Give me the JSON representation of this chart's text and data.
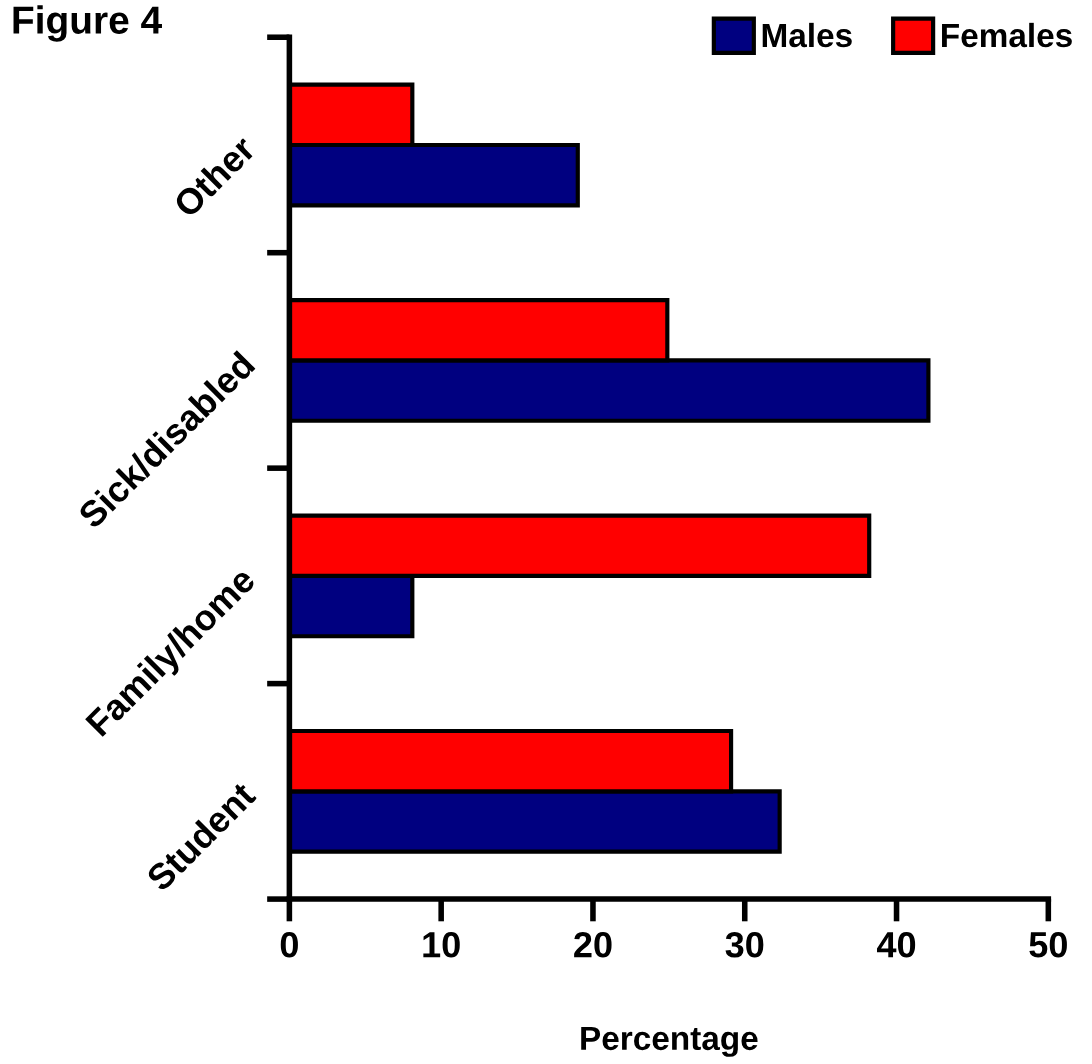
{
  "chart_data": {
    "type": "bar",
    "orientation": "horizontal",
    "title": "Figure 4",
    "xlabel": "Percentage",
    "categories": [
      "Other",
      "Sick/disabled",
      "Family/home",
      "Student"
    ],
    "series": [
      {
        "name": "Males",
        "color": "#000080",
        "values": [
          19,
          42.1,
          8.1,
          32.3
        ]
      },
      {
        "name": "Females",
        "color": "#ff0000",
        "values": [
          8.1,
          24.9,
          38.2,
          29.1
        ]
      }
    ],
    "xlim": [
      0,
      50
    ],
    "xticks": [
      0,
      10,
      20,
      30,
      40,
      50
    ],
    "grid": false,
    "legend": "top right"
  }
}
